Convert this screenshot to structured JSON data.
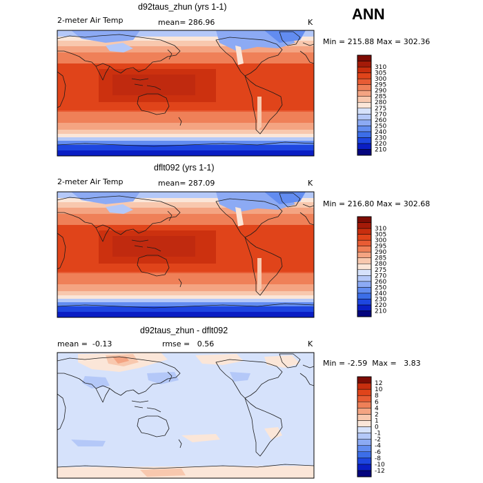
{
  "season": "ANN",
  "palette_abs": [
    "#04057e",
    "#0a1ec4",
    "#1e46e0",
    "#3c6ee8",
    "#628cf0",
    "#8caaf4",
    "#b4c8f8",
    "#d6e2fb",
    "#fbe6d8",
    "#f8c8ae",
    "#f4a482",
    "#ef8058",
    "#e85c34",
    "#e0441a",
    "#c82e0e",
    "#a41a08",
    "#7e0c04"
  ],
  "palette_diff": [
    "#04057e",
    "#0a1ec4",
    "#1e46e0",
    "#3c6ee8",
    "#628cf0",
    "#8caaf4",
    "#b4c8f8",
    "#d6e2fb",
    "#fbe6d8",
    "#f8c8ae",
    "#f4a482",
    "#ef8058",
    "#e85c34",
    "#e0441a",
    "#c82e0e",
    "#7e0c04"
  ],
  "chart_data": [
    {
      "type": "heatmap",
      "title": "d92taus_zhun (yrs 1-1)",
      "variable": "2-meter Air Temp",
      "mean_label": "mean=",
      "mean": "286.96",
      "units": "K",
      "min_label": "Min =",
      "min": "215.88",
      "max_label": "Max =",
      "max": "302.36",
      "levels": [
        "210",
        "220",
        "230",
        "240",
        "250",
        "260",
        "270",
        "275",
        "280",
        "285",
        "290",
        "295",
        "300",
        "305",
        "310"
      ]
    },
    {
      "type": "heatmap",
      "title": "dflt092 (yrs 1-1)",
      "variable": "2-meter Air Temp",
      "mean_label": "mean=",
      "mean": "287.09",
      "units": "K",
      "min_label": "Min =",
      "min": "216.80",
      "max_label": "Max =",
      "max": "302.68",
      "levels": [
        "210",
        "220",
        "230",
        "240",
        "250",
        "260",
        "270",
        "275",
        "280",
        "285",
        "290",
        "295",
        "300",
        "305",
        "310"
      ]
    },
    {
      "type": "heatmap",
      "title": "d92taus_zhun - dflt092",
      "mean_label": "mean =",
      "mean": "-0.13",
      "rmse_label": "rmse =",
      "rmse": "0.56",
      "units": "K",
      "min_label": "Min =",
      "min": "-2.59",
      "max_label": "Max =",
      "max": "3.83",
      "levels": [
        "-12",
        "-10",
        "-8",
        "-6",
        "-4",
        "-2",
        "-1",
        "0",
        "1",
        "2",
        "4",
        "6",
        "8",
        "10",
        "12"
      ]
    }
  ]
}
